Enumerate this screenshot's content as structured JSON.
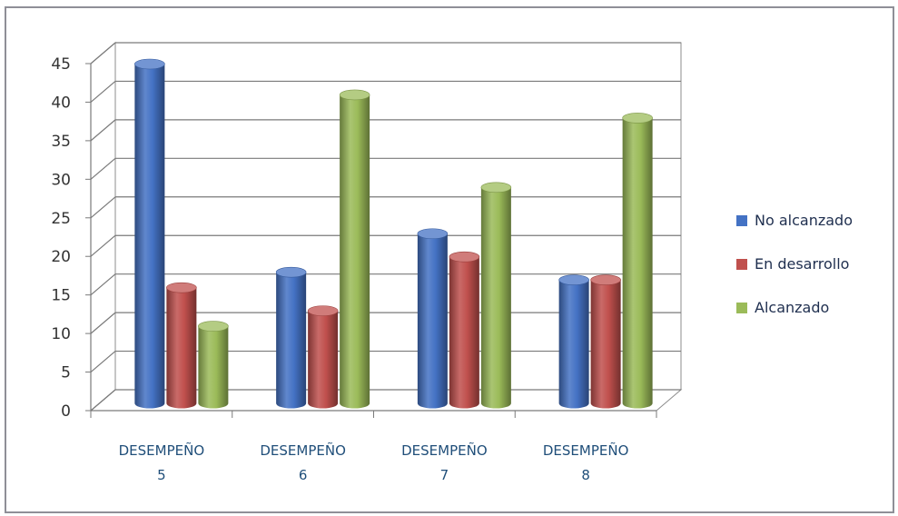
{
  "chart_data": {
    "type": "bar",
    "categories": [
      [
        "DESEMPEÑO",
        "5"
      ],
      [
        "DESEMPEÑO",
        "6"
      ],
      [
        "DESEMPEÑO",
        "7"
      ],
      [
        "DESEMPEÑO",
        "8"
      ]
    ],
    "series": [
      {
        "name": "No alcanzado",
        "values": [
          44,
          17,
          22,
          16
        ],
        "color": "#4472c4"
      },
      {
        "name": "En desarrollo",
        "values": [
          15,
          12,
          19,
          16
        ],
        "color": "#c0504d"
      },
      {
        "name": "Alcanzado",
        "values": [
          10,
          40,
          28,
          37
        ],
        "color": "#9bbb59"
      }
    ],
    "ylim": [
      0,
      45
    ],
    "yticks": [
      "0",
      "5",
      "10",
      "15",
      "20",
      "25",
      "30",
      "35",
      "40",
      "45"
    ],
    "title": "",
    "xlabel": "",
    "ylabel": "",
    "legend_position": "right",
    "grid": true,
    "style": "3d-cylinder"
  }
}
